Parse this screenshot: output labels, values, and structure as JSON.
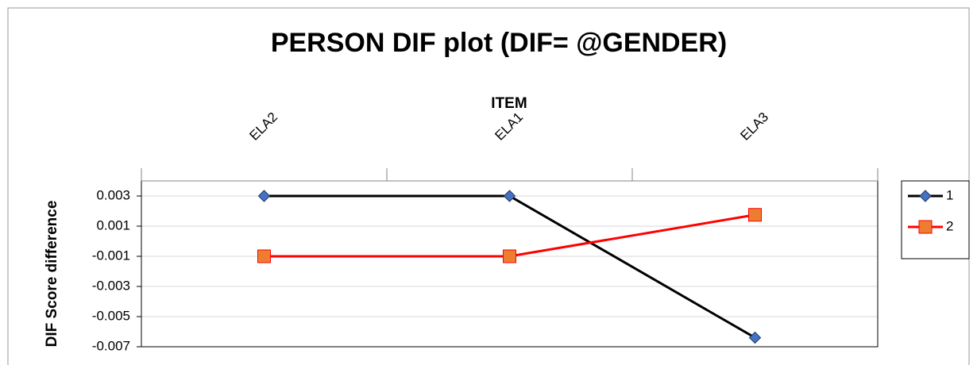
{
  "chart_data": {
    "type": "line",
    "title": "PERSON DIF plot (DIF= @GENDER)",
    "x_label": "ITEM",
    "y_label": "DIF Score difference",
    "categories": [
      "ELA2",
      "ELA1",
      "ELA3"
    ],
    "series": [
      {
        "name": "1",
        "color": "#000000",
        "marker": "diamond",
        "marker_color": "#4472c4",
        "values": [
          0.003,
          0.003,
          -0.0064
        ]
      },
      {
        "name": "2",
        "color": "#ff0000",
        "marker": "square",
        "marker_color": "#ed7d31",
        "values": [
          -0.001,
          -0.001,
          0.00175
        ]
      }
    ],
    "ylim": [
      -0.007,
      0.004
    ],
    "yticks": [
      0.003,
      0.001,
      -0.001,
      -0.003,
      -0.005,
      -0.007
    ],
    "grid": true,
    "legend": "right"
  }
}
